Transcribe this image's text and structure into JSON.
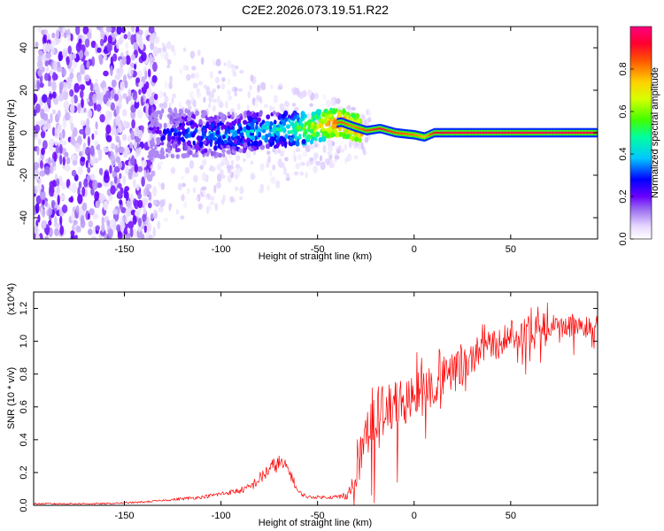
{
  "title": "C2E2.2026.073.19.51.R22",
  "chart_data": [
    {
      "type": "heatmap",
      "title": "C2E2.2026.073.19.51.R22",
      "xlabel": "Height of straight line (km)",
      "ylabel": "Frequency (Hz)",
      "xlim": [
        -197,
        95
      ],
      "ylim": [
        -50,
        50
      ],
      "xticks": [
        -150,
        -100,
        -50,
        0,
        50
      ],
      "xtick_labels": [
        "-150",
        "-100",
        "-50",
        "0",
        "50"
      ],
      "yticks": [
        -40,
        -20,
        0,
        20,
        40
      ],
      "ytick_labels": [
        "-40",
        "-20",
        "0",
        "20",
        "40"
      ],
      "colorbar": {
        "label": "Normalized spectral amplitude",
        "range": [
          0,
          1
        ],
        "ticks": [
          0.0,
          0.2,
          0.4,
          0.6,
          0.8
        ],
        "tick_labels": [
          "0.0",
          "0.2",
          "0.4",
          "0.6",
          "0.8"
        ],
        "colormap": [
          "#f2e6ff",
          "#9a6cf0",
          "#6a00ff",
          "#0000ff",
          "#00c8ff",
          "#00ff80",
          "#c8ff00",
          "#ffd000",
          "#ff5500",
          "#ff0050",
          "#ff0080"
        ]
      },
      "ridge": {
        "x": [
          -135,
          -120,
          -100,
          -80,
          -65,
          -55,
          -45,
          -38,
          -32,
          -25,
          -18,
          -10,
          0,
          5,
          10,
          20,
          40,
          60,
          95
        ],
        "freq": [
          -1,
          0,
          -1,
          1,
          2,
          2,
          4,
          5,
          3,
          1,
          2,
          0,
          -1,
          -2,
          0,
          0,
          0,
          0,
          0
        ],
        "amplitude": [
          0.2,
          0.3,
          0.35,
          0.4,
          0.45,
          0.6,
          0.75,
          0.85,
          0.8,
          0.85,
          0.9,
          0.85,
          0.8,
          0.75,
          0.9,
          0.95,
          0.95,
          0.95,
          0.95
        ]
      },
      "noise_region": {
        "x_from": -197,
        "x_to": -133,
        "amplitude": 0.15
      }
    },
    {
      "type": "line",
      "xlabel": "Height of straight line (km)",
      "ylabel": "SNR (10 * v/v)",
      "y_scale_note": "(x10^4)",
      "xlim": [
        -197,
        95
      ],
      "ylim": [
        0,
        1.3
      ],
      "xticks": [
        -150,
        -100,
        -50,
        0,
        50
      ],
      "xtick_labels": [
        "-150",
        "-100",
        "-50",
        "0",
        "50"
      ],
      "yticks": [
        0.0,
        0.2,
        0.4,
        0.6,
        0.8,
        1.0,
        1.2
      ],
      "ytick_labels": [
        "0.0",
        "0.2",
        "0.4",
        "0.6",
        "0.8",
        "1.0",
        "1.2"
      ],
      "series": [
        {
          "name": "SNR",
          "color": "#ff0000",
          "x": [
            -197,
            -180,
            -160,
            -140,
            -130,
            -120,
            -110,
            -100,
            -95,
            -90,
            -85,
            -80,
            -75,
            -70,
            -65,
            -60,
            -55,
            -50,
            -45,
            -40,
            -35,
            -32,
            -30,
            -27,
            -25,
            -22,
            -20,
            -15,
            -10,
            -5,
            0,
            5,
            10,
            15,
            20,
            25,
            30,
            35,
            40,
            45,
            50,
            55,
            60,
            65,
            70,
            75,
            80,
            85,
            90,
            95
          ],
          "y": [
            0.01,
            0.01,
            0.01,
            0.02,
            0.03,
            0.04,
            0.05,
            0.07,
            0.08,
            0.09,
            0.11,
            0.16,
            0.22,
            0.26,
            0.22,
            0.08,
            0.05,
            0.05,
            0.05,
            0.05,
            0.06,
            0.12,
            0.2,
            0.35,
            0.45,
            0.52,
            0.55,
            0.58,
            0.6,
            0.62,
            0.65,
            0.7,
            0.72,
            0.76,
            0.8,
            0.85,
            0.9,
            0.95,
            0.98,
            1.0,
            1.05,
            1.06,
            1.08,
            1.1,
            1.1,
            1.08,
            1.1,
            1.1,
            1.08,
            1.1
          ],
          "noise_amplitude": [
            0.01,
            0.01,
            0.01,
            0.01,
            0.01,
            0.02,
            0.02,
            0.03,
            0.03,
            0.04,
            0.05,
            0.08,
            0.1,
            0.1,
            0.08,
            0.03,
            0.02,
            0.02,
            0.02,
            0.03,
            0.05,
            0.1,
            0.2,
            0.3,
            0.3,
            0.35,
            0.35,
            0.3,
            0.3,
            0.3,
            0.3,
            0.3,
            0.25,
            0.25,
            0.25,
            0.25,
            0.2,
            0.2,
            0.2,
            0.2,
            0.2,
            0.2,
            0.15,
            0.15,
            0.15,
            0.15,
            0.15,
            0.12,
            0.12,
            0.12
          ]
        }
      ]
    }
  ]
}
